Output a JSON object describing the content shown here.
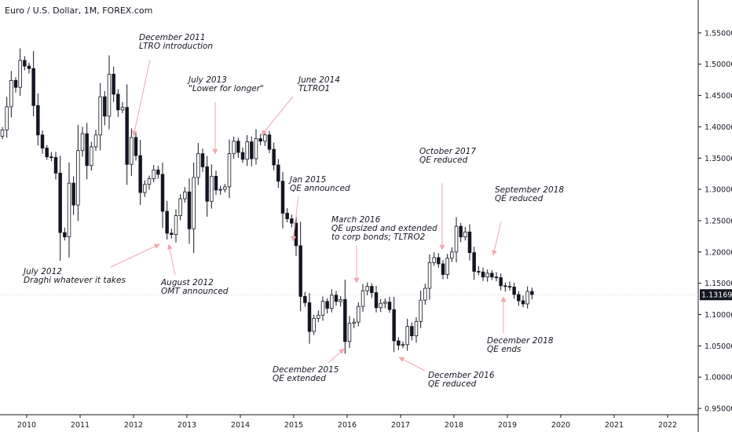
{
  "chart_data": {
    "type": "candlestick",
    "title": "Euro / U.S. Dollar, 1M, FOREX.com",
    "last_price": "1.13169",
    "ylim": [
      0.94,
      1.59
    ],
    "y_ticks": [
      {
        "v": 1.55,
        "label": "1.55000"
      },
      {
        "v": 1.5,
        "label": "1.50000"
      },
      {
        "v": 1.45,
        "label": "1.45000"
      },
      {
        "v": 1.4,
        "label": "1.40000"
      },
      {
        "v": 1.35,
        "label": "1.35000"
      },
      {
        "v": 1.3,
        "label": "1.30000"
      },
      {
        "v": 1.25,
        "label": "1.25000"
      },
      {
        "v": 1.2,
        "label": "1.20000"
      },
      {
        "v": 1.15,
        "label": "1.15000"
      },
      {
        "v": 1.1,
        "label": "1.10000"
      },
      {
        "v": 1.05,
        "label": "1.05000"
      },
      {
        "v": 1.0,
        "label": "1.00000"
      },
      {
        "v": 0.95,
        "label": "0.95000"
      }
    ],
    "x_ticks": [
      "2010",
      "2011",
      "2012",
      "2013",
      "2014",
      "2015",
      "2016",
      "2017",
      "2018",
      "2019",
      "2020",
      "2021",
      "2022"
    ],
    "x_start_year": 2009.5,
    "closes": [
      1.395,
      1.432,
      1.474,
      1.463,
      1.506,
      1.497,
      1.493,
      1.434,
      1.387,
      1.366,
      1.352,
      1.351,
      1.326,
      1.231,
      1.224,
      1.31,
      1.275,
      1.362,
      1.389,
      1.338,
      1.368,
      1.387,
      1.448,
      1.417,
      1.484,
      1.452,
      1.427,
      1.431,
      1.34,
      1.383,
      1.354,
      1.295,
      1.308,
      1.317,
      1.331,
      1.324,
      1.265,
      1.23,
      1.228,
      1.258,
      1.285,
      1.296,
      1.237,
      1.319,
      1.357,
      1.336,
      1.281,
      1.321,
      1.299,
      1.3,
      1.304,
      1.357,
      1.377,
      1.359,
      1.348,
      1.376,
      1.349,
      1.381,
      1.377,
      1.387,
      1.364,
      1.339,
      1.313,
      1.262,
      1.253,
      1.246,
      1.21,
      1.129,
      1.119,
      1.073,
      1.094,
      1.099,
      1.121,
      1.11,
      1.131,
      1.121,
      1.124,
      1.057,
      1.086,
      1.088,
      1.113,
      1.138,
      1.145,
      1.135,
      1.111,
      1.118,
      1.12,
      1.108,
      1.058,
      1.051,
      1.052,
      1.081,
      1.066,
      1.089,
      1.123,
      1.142,
      1.183,
      1.191,
      1.181,
      1.164,
      1.19,
      1.2,
      1.241,
      1.224,
      1.232,
      1.199,
      1.169,
      1.168,
      1.16,
      1.166,
      1.16,
      1.159,
      1.146,
      1.145,
      1.144,
      1.132,
      1.122,
      1.117,
      1.137,
      1.132
    ],
    "annotations": [
      {
        "lines": [
          "December 2011",
          "LTRO introduction"
        ]
      },
      {
        "lines": [
          "July 2013",
          "\"Lower for longer\""
        ]
      },
      {
        "lines": [
          "June 2014",
          "TLTRO1"
        ]
      },
      {
        "lines": [
          "Jan 2015",
          "QE announced"
        ]
      },
      {
        "lines": [
          "October 2017",
          "QE reduced"
        ]
      },
      {
        "lines": [
          "September 2018",
          "QE reduced"
        ]
      },
      {
        "lines": [
          "March 2016",
          "QE upsized and extended",
          "to corp bonds; TLTRO2"
        ]
      },
      {
        "lines": [
          "July 2012",
          "Draghi whatever it takes"
        ]
      },
      {
        "lines": [
          "August 2012",
          "OMT announced"
        ]
      },
      {
        "lines": [
          "December 2015",
          "QE extended"
        ]
      },
      {
        "lines": [
          "December 2016",
          "QE reduced"
        ]
      },
      {
        "lines": [
          "December 2018",
          "QE ends"
        ]
      }
    ],
    "colors": {
      "up": "#ffffff",
      "down": "#131722",
      "wick": "#131722",
      "arrow": "#f4a6ad",
      "price_label_bg": "#131722",
      "axis": "#131722",
      "grid": "#e0e3eb"
    }
  }
}
